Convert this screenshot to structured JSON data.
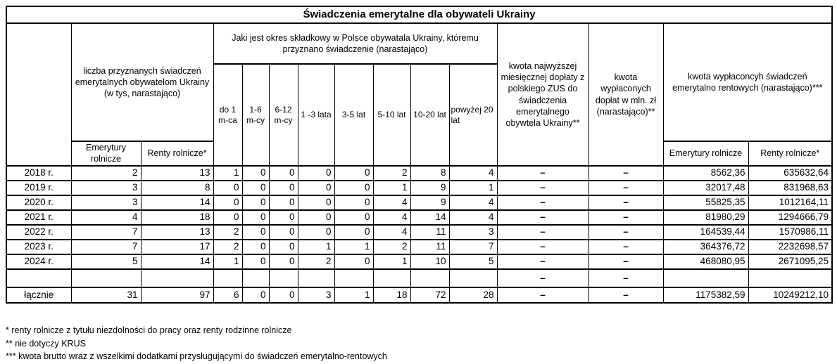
{
  "title": "Świadczenia emerytalne dla obywateli Ukrainy",
  "header": {
    "liczba_group": "liczba przyznanych świadczeń emerytalnych obywatelom Ukrainy (w tys, narastająco)",
    "okres_group": "Jaki jest okres składkowy w Polsce obywatala Ukrainy, któremu przyznano świadczenie (narastająco)",
    "kwota_najwyzszej": "kwota najwyższej miesięcznej dopłaty z polskiego ZUS do świadczenia emerytalnego obywtela Ukrainy**",
    "kwota_doplat": "kwota wypłaconych dopłat w mln. zł (narastająco)**",
    "kwota_swiadczen_group": "kwota wypłaconcyh świadczeń emerytalno rentowych (narastająco)***",
    "periods": [
      "do 1 m-ca",
      "1-6 m-cy",
      "6-12 m-cy",
      "1 -3 lata",
      "3-5 lat",
      "5-10 lat",
      "10-20 lat",
      "powyżej 20 lat"
    ],
    "sub_left": [
      "Emerytury rolnicze",
      "Renty rolnicze*"
    ],
    "sub_right": [
      "Emerytury rolnicze",
      "Renty rolnicze*"
    ]
  },
  "rows": [
    {
      "label": "2018 r.",
      "type": "data",
      "cells": [
        "2",
        "13",
        "1",
        "0",
        "0",
        "0",
        "0",
        "2",
        "8",
        "4",
        "–",
        "–",
        "8562,36",
        "635632,64"
      ]
    },
    {
      "label": "2019 r.",
      "type": "data",
      "cells": [
        "3",
        "8",
        "0",
        "0",
        "0",
        "0",
        "0",
        "1",
        "9",
        "1",
        "–",
        "–",
        "32017,48",
        "831968,63"
      ]
    },
    {
      "label": "2020 r.",
      "type": "data",
      "cells": [
        "3",
        "14",
        "0",
        "0",
        "0",
        "0",
        "0",
        "4",
        "9",
        "4",
        "–",
        "–",
        "55825,35",
        "1012164,11"
      ]
    },
    {
      "label": "2021 r.",
      "type": "data",
      "cells": [
        "4",
        "18",
        "0",
        "0",
        "0",
        "0",
        "0",
        "4",
        "14",
        "4",
        "–",
        "–",
        "81980,29",
        "1294666,79"
      ]
    },
    {
      "label": "2022 r.",
      "type": "data",
      "cells": [
        "7",
        "13",
        "2",
        "0",
        "0",
        "0",
        "0",
        "4",
        "11",
        "3",
        "–",
        "–",
        "164539,44",
        "1570986,11"
      ]
    },
    {
      "label": "2023 r.",
      "type": "data",
      "cells": [
        "7",
        "17",
        "2",
        "0",
        "0",
        "1",
        "1",
        "2",
        "11",
        "7",
        "–",
        "–",
        "364376,72",
        "2232698,57"
      ]
    },
    {
      "label": "2024 r.",
      "type": "data",
      "cells": [
        "5",
        "14",
        "1",
        "0",
        "0",
        "2",
        "0",
        "1",
        "10",
        "5",
        "–",
        "–",
        "468080,95",
        "2671095,25"
      ]
    },
    {
      "label": "",
      "type": "spacer",
      "cells": [
        "",
        "",
        "",
        "",
        "",
        "",
        "",
        "",
        "",
        "",
        "–",
        "–",
        "",
        ""
      ]
    },
    {
      "label": "łącznie",
      "type": "total",
      "cells": [
        "31",
        "97",
        "6",
        "0",
        "0",
        "3",
        "1",
        "18",
        "72",
        "28",
        "–",
        "–",
        "1175382,59",
        "10249212,10"
      ]
    }
  ],
  "footnotes": [
    "* renty rolnicze z tytułu niezdolności do pracy oraz renty rodzinne rolnicze",
    "** nie dotyczy KRUS",
    "*** kwota brutto wraz z wszelkimi dodatkami przysługującymi do świadczeń emerytalno-rentowych"
  ]
}
